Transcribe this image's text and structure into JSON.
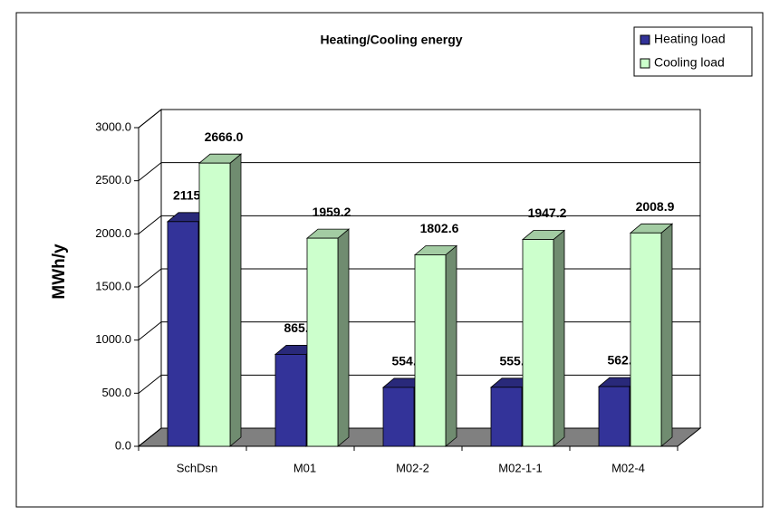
{
  "chart_data": {
    "type": "bar3d",
    "title": "Heating/Cooling energy",
    "y_label": "MWh/y",
    "categories": [
      "SchDsn",
      "M01",
      "M02-2",
      "M02-1-1",
      "M02-4"
    ],
    "series": [
      {
        "name": "Heating load",
        "color": "#333399",
        "values": [
          2115.1,
          865.5,
          554.5,
          555.6,
          562.2
        ],
        "value_labels": [
          "2115.1",
          "865.5",
          "554.5",
          "555.6",
          "562.2"
        ]
      },
      {
        "name": "Cooling load",
        "color": "#ccffcc",
        "values": [
          2666.0,
          1959.2,
          1802.6,
          1947.2,
          2008.9
        ],
        "value_labels": [
          "2666.0",
          "1959.2",
          "1802.6",
          "1947.2",
          "2008.9"
        ]
      }
    ],
    "ylim": [
      0,
      3000
    ],
    "yticks": [
      {
        "value": 0,
        "label": "0.0"
      },
      {
        "value": 500,
        "label": "500.0"
      },
      {
        "value": 1000,
        "label": "1000.0"
      },
      {
        "value": 1500,
        "label": "1500.0"
      },
      {
        "value": 2000,
        "label": "2000.0"
      },
      {
        "value": 2500,
        "label": "2500.0"
      },
      {
        "value": 3000,
        "label": "3000.0"
      }
    ],
    "grid": true,
    "legend": "top-right"
  }
}
